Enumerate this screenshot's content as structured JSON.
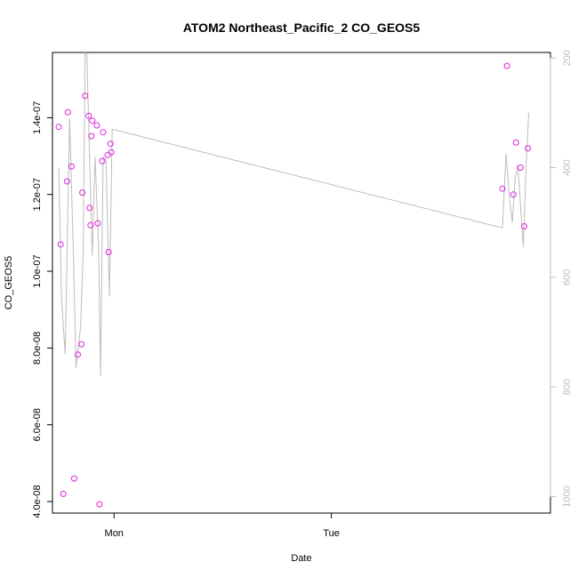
{
  "chart_data": {
    "type": "scatter",
    "title": "ATOM2 Northeast_Pacific_2 CO_GEOS5",
    "xlabel": "Date",
    "ylabel": "CO_GEOS5",
    "x_ticks": [
      "Mon",
      "Tue"
    ],
    "y_ticks": [
      "4.0e-08",
      "6.0e-08",
      "8.0e-08",
      "1.0e-07",
      "1.2e-07",
      "1.4e-07"
    ],
    "y_tick_values": [
      4e-08,
      6e-08,
      8e-08,
      1e-07,
      1.2e-07,
      1.4e-07
    ],
    "ylim": [
      3.7e-08,
      1.57e-07
    ],
    "y2_ticks": [
      "200",
      "400",
      "600",
      "800",
      "1000"
    ],
    "y2_tick_values": [
      200,
      400,
      600,
      800,
      1000
    ],
    "y2lim": [
      1030,
      190
    ],
    "x_tick_hours": [
      0,
      24
    ],
    "xlim_hours": [
      -6.8,
      48.2
    ],
    "grid": false,
    "legend": "none",
    "colors": {
      "points": "#e020e0",
      "line": "#bdbdbd",
      "axis": "#000000",
      "axis2": "#bdbdbd"
    },
    "series": [
      {
        "marker": "open-circle",
        "points": [
          {
            "t": -6.1,
            "y": 1.376e-07
          },
          {
            "t": -5.9,
            "y": 1.07e-07
          },
          {
            "t": -5.6,
            "y": 4.2e-08
          },
          {
            "t": -5.2,
            "y": 1.234e-07
          },
          {
            "t": -5.1,
            "y": 1.414e-07
          },
          {
            "t": -4.7,
            "y": 1.273e-07
          },
          {
            "t": -4.4,
            "y": 4.6e-08
          },
          {
            "t": -4.0,
            "y": 7.83e-08
          },
          {
            "t": -3.6,
            "y": 8.1e-08
          },
          {
            "t": -3.5,
            "y": 1.205e-07
          },
          {
            "t": -3.2,
            "y": 1.457e-07
          },
          {
            "t": -2.8,
            "y": 1.405e-07
          },
          {
            "t": -2.7,
            "y": 1.165e-07
          },
          {
            "t": -2.6,
            "y": 1.12e-07
          },
          {
            "t": -2.5,
            "y": 1.352e-07
          },
          {
            "t": -2.4,
            "y": 1.392e-07
          },
          {
            "t": -1.9,
            "y": 1.38e-07
          },
          {
            "t": -1.8,
            "y": 1.125e-07
          },
          {
            "t": -1.6,
            "y": 3.93e-08
          },
          {
            "t": -1.3,
            "y": 1.287e-07
          },
          {
            "t": -1.2,
            "y": 1.362e-07
          },
          {
            "t": -0.7,
            "y": 1.303e-07
          },
          {
            "t": -0.6,
            "y": 1.05e-07
          },
          {
            "t": -0.4,
            "y": 1.332e-07
          },
          {
            "t": -0.3,
            "y": 1.31e-07
          },
          {
            "t": 42.9,
            "y": 1.215e-07
          },
          {
            "t": 43.4,
            "y": 1.535e-07
          },
          {
            "t": 44.1,
            "y": 1.2e-07
          },
          {
            "t": 44.4,
            "y": 1.335e-07
          },
          {
            "t": 44.9,
            "y": 1.27e-07
          },
          {
            "t": 45.3,
            "y": 1.117e-07
          },
          {
            "t": 45.7,
            "y": 1.32e-07
          }
        ]
      },
      {
        "axis": "right",
        "style": "line",
        "points": [
          {
            "t": -6.1,
            "p": 400
          },
          {
            "t": -5.8,
            "p": 640
          },
          {
            "t": -5.4,
            "p": 740
          },
          {
            "t": -4.9,
            "p": 310
          },
          {
            "t": -4.5,
            "p": 550
          },
          {
            "t": -4.2,
            "p": 765
          },
          {
            "t": -3.7,
            "p": 690
          },
          {
            "t": -3.4,
            "p": 550
          },
          {
            "t": -3.2,
            "p": 190
          },
          {
            "t": -3.0,
            "p": 195
          },
          {
            "t": -2.7,
            "p": 380
          },
          {
            "t": -2.4,
            "p": 560
          },
          {
            "t": -2.1,
            "p": 380
          },
          {
            "t": -1.7,
            "p": 545
          },
          {
            "t": -1.5,
            "p": 780
          },
          {
            "t": -1.2,
            "p": 380
          },
          {
            "t": -0.9,
            "p": 385
          },
          {
            "t": -0.5,
            "p": 635
          },
          {
            "t": -0.2,
            "p": 330
          },
          {
            "t": 42.9,
            "p": 510
          },
          {
            "t": 43.3,
            "p": 375
          },
          {
            "t": 43.7,
            "p": 460
          },
          {
            "t": 44.0,
            "p": 500
          },
          {
            "t": 44.3,
            "p": 420
          },
          {
            "t": 44.6,
            "p": 395
          },
          {
            "t": 44.9,
            "p": 470
          },
          {
            "t": 45.2,
            "p": 545
          },
          {
            "t": 45.5,
            "p": 400
          },
          {
            "t": 45.8,
            "p": 300
          }
        ]
      }
    ]
  }
}
